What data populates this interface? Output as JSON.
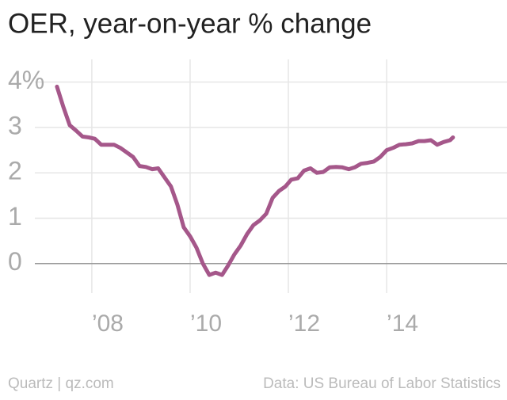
{
  "chart_data": {
    "type": "line",
    "title": "OER, year-on-year % change",
    "source": "Data: US Bureau of Labor Statistics",
    "credit": "Quartz | qz.com",
    "x": [
      2007.29,
      2007.42,
      2007.55,
      2007.68,
      2007.81,
      2007.94,
      2008.06,
      2008.19,
      2008.32,
      2008.45,
      2008.58,
      2008.71,
      2008.84,
      2008.97,
      2009.1,
      2009.23,
      2009.35,
      2009.48,
      2009.61,
      2009.74,
      2009.87,
      2010.0,
      2010.13,
      2010.26,
      2010.39,
      2010.52,
      2010.65,
      2010.77,
      2010.9,
      2011.03,
      2011.16,
      2011.29,
      2011.42,
      2011.55,
      2011.68,
      2011.81,
      2011.94,
      2012.06,
      2012.19,
      2012.32,
      2012.45,
      2012.58,
      2012.71,
      2012.84,
      2012.97,
      2013.1,
      2013.23,
      2013.35,
      2013.48,
      2013.61,
      2013.74,
      2013.87,
      2014.0,
      2014.13,
      2014.26,
      2014.39,
      2014.52,
      2014.65,
      2014.77,
      2014.9,
      2015.03,
      2015.16,
      2015.29,
      2015.35
    ],
    "series": [
      {
        "name": "OER",
        "color": "#a5578a",
        "values": [
          3.9,
          3.45,
          3.05,
          2.93,
          2.8,
          2.78,
          2.75,
          2.62,
          2.62,
          2.62,
          2.55,
          2.45,
          2.35,
          2.15,
          2.13,
          2.08,
          2.1,
          1.9,
          1.7,
          1.3,
          0.8,
          0.6,
          0.35,
          0,
          -0.25,
          -0.2,
          -0.25,
          -0.05,
          0.2,
          0.4,
          0.65,
          0.85,
          0.95,
          1.1,
          1.45,
          1.6,
          1.7,
          1.85,
          1.88,
          2.05,
          2.1,
          2.0,
          2.02,
          2.12,
          2.13,
          2.12,
          2.08,
          2.12,
          2.2,
          2.22,
          2.25,
          2.35,
          2.5,
          2.55,
          2.62,
          2.63,
          2.65,
          2.7,
          2.7,
          2.72,
          2.62,
          2.68,
          2.72,
          2.78
        ]
      }
    ],
    "xlim": [
      2006.84,
      2016.45
    ],
    "xticks": [
      {
        "value": 2008,
        "label": "’08"
      },
      {
        "value": 2010,
        "label": "’10"
      },
      {
        "value": 2012,
        "label": "’12"
      },
      {
        "value": 2014,
        "label": "’14"
      }
    ],
    "ylim": [
      -0.65,
      4.5
    ],
    "yticks": [
      0,
      1,
      2,
      3,
      {
        "value": 4,
        "label": "4%"
      }
    ],
    "grid": true
  }
}
